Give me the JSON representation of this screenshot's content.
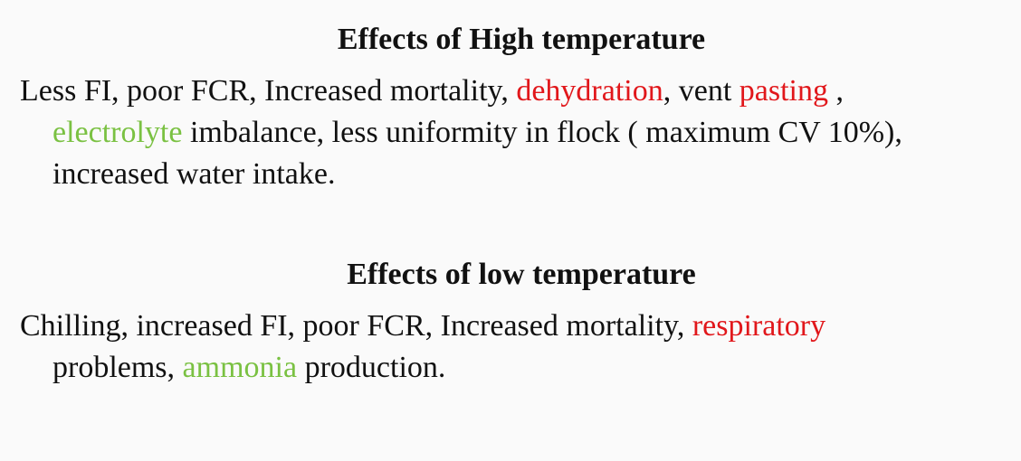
{
  "colors": {
    "text": "#111111",
    "highlight_red": "#e1171b",
    "highlight_green": "#7ac142",
    "background": "#fafafa"
  },
  "high_section": {
    "title": "Effects of High temperature",
    "line1": {
      "a": "Less FI, poor FCR, Increased mortality,  ",
      "dehydration": "dehydration",
      "b": ", vent ",
      "pasting": "pasting",
      "c": " ,"
    },
    "line2": {
      "electrolyte": "electrolyte",
      "a": " imbalance, less uniformity in flock ( maximum CV 10%),"
    },
    "line3": {
      "a": "increased water intake."
    }
  },
  "low_section": {
    "title": "Effects of low temperature",
    "line1": {
      "a": "Chilling, increased FI, poor FCR, Increased mortality, ",
      "respiratory": "respiratory"
    },
    "line2": {
      "a": "problems, ",
      "ammonia": "ammonia",
      "b": " production."
    }
  }
}
